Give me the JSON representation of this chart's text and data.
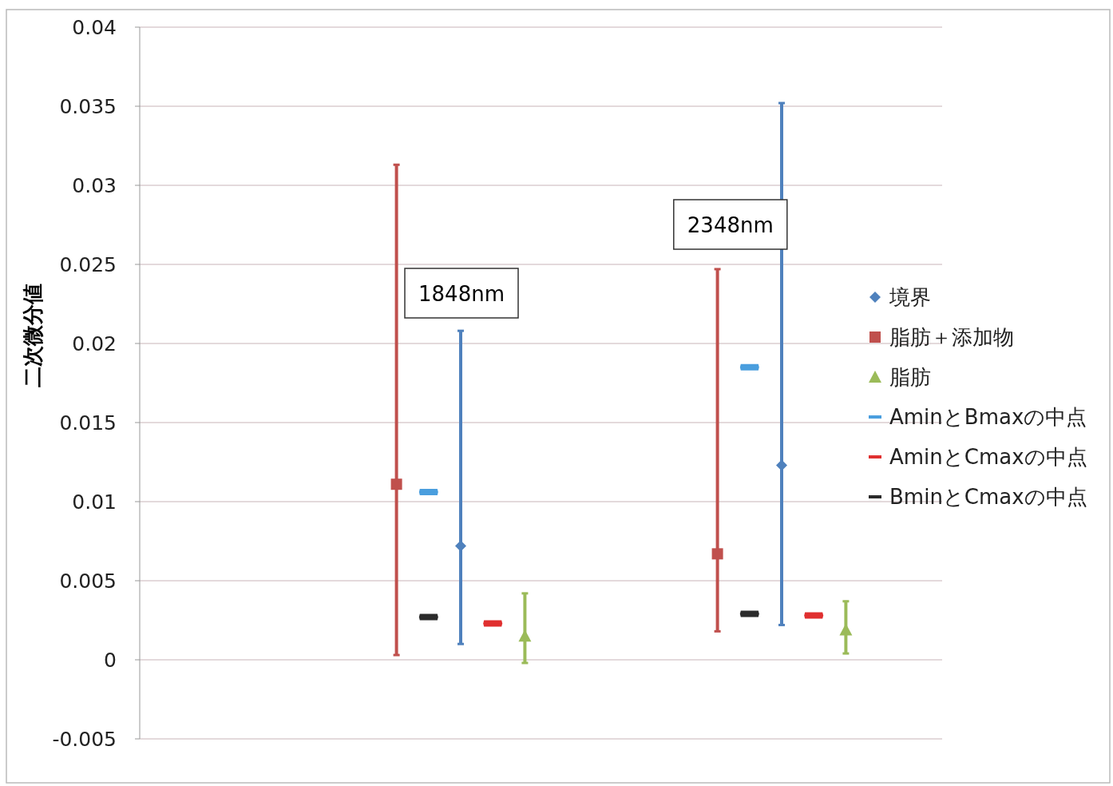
{
  "chart_data": {
    "type": "scatter",
    "ylabel": "二次微分値",
    "categories": [
      null,
      null,
      null,
      null,
      null,
      null,
      null,
      null,
      null,
      null,
      null,
      null,
      null,
      null,
      null,
      null,
      null,
      null,
      null,
      null,
      null,
      null,
      null,
      null,
      null,
      null
    ],
    "ylim": [
      -0.005,
      0.04
    ],
    "yticks": [
      -0.005,
      0,
      0.005,
      0.01,
      0.015,
      0.02,
      0.025,
      0.03,
      0.035,
      0.04
    ],
    "grid": "y",
    "legend": "right",
    "tick_labels": "y",
    "annotations": [
      "1848nm",
      "2348nm"
    ],
    "series": [
      {
        "name": "境界",
        "color": "#4f81bd",
        "marker": "diamond",
        "values": [
          null,
          null,
          null,
          null,
          null,
          null,
          null,
          null,
          null,
          null,
          0.0072,
          null,
          null,
          null,
          null,
          null,
          null,
          null,
          null,
          null,
          0.0123,
          null,
          null,
          null,
          null,
          null
        ],
        "errors": [
          null,
          null,
          null,
          null,
          null,
          null,
          null,
          null,
          null,
          null,
          [
            0.001,
            0.0208
          ],
          null,
          null,
          null,
          null,
          null,
          null,
          null,
          null,
          null,
          [
            0.0022,
            0.0352
          ],
          null,
          null,
          null,
          null,
          null
        ]
      },
      {
        "name": "脂肪＋添加物",
        "color": "#c0504d",
        "marker": "square",
        "values": [
          null,
          null,
          null,
          null,
          null,
          null,
          null,
          null,
          0.0111,
          null,
          null,
          null,
          null,
          null,
          null,
          null,
          null,
          null,
          0.0067,
          null,
          null,
          null,
          null,
          null,
          null,
          null
        ],
        "errors": [
          null,
          null,
          null,
          null,
          null,
          null,
          null,
          null,
          [
            0.0003,
            0.0313
          ],
          null,
          null,
          null,
          null,
          null,
          null,
          null,
          null,
          null,
          [
            0.0018,
            0.0247
          ],
          null,
          null,
          null,
          null,
          null,
          null,
          null
        ]
      },
      {
        "name": "脂肪",
        "color": "#9bbb59",
        "marker": "triangle",
        "values": [
          null,
          null,
          null,
          null,
          null,
          null,
          null,
          null,
          null,
          null,
          null,
          null,
          0.0015,
          null,
          null,
          null,
          null,
          null,
          null,
          null,
          null,
          null,
          0.0019,
          null,
          null,
          null
        ],
        "errors": [
          null,
          null,
          null,
          null,
          null,
          null,
          null,
          null,
          null,
          null,
          null,
          null,
          [
            -0.0002,
            0.0042
          ],
          null,
          null,
          null,
          null,
          null,
          null,
          null,
          null,
          null,
          [
            0.0004,
            0.0037
          ],
          null,
          null,
          null
        ]
      },
      {
        "name": "AminとBmaxの中点",
        "color": "#4a9ede",
        "values": [
          null,
          null,
          null,
          null,
          null,
          null,
          null,
          null,
          null,
          0.0106,
          null,
          null,
          null,
          null,
          null,
          null,
          null,
          null,
          null,
          0.0185,
          null,
          null,
          null,
          null,
          null,
          null
        ]
      },
      {
        "name": "AminとCmaxの中点",
        "color": "#e03030",
        "values": [
          null,
          null,
          null,
          null,
          null,
          null,
          null,
          null,
          null,
          null,
          null,
          0.0023,
          null,
          null,
          null,
          null,
          null,
          null,
          null,
          null,
          null,
          0.0028,
          null,
          null,
          null,
          null
        ]
      },
      {
        "name": "BminとCmaxの中点",
        "color": "#2b2b2b",
        "values": [
          null,
          null,
          null,
          null,
          null,
          null,
          null,
          null,
          null,
          0.0027,
          null,
          null,
          null,
          null,
          null,
          null,
          null,
          null,
          null,
          0.0029,
          null,
          null,
          null,
          null,
          null,
          null
        ]
      }
    ]
  }
}
